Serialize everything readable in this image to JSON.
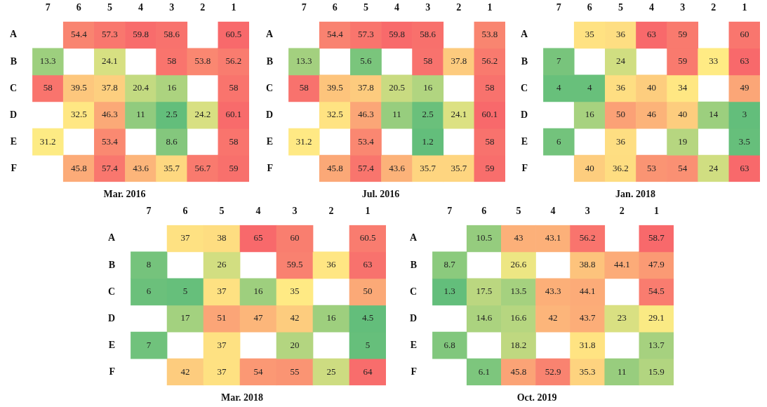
{
  "chart_data": [
    {
      "type": "heatmap",
      "title": "Mar. 2016",
      "categories": [
        "7",
        "6",
        "5",
        "4",
        "3",
        "2",
        "1"
      ],
      "y_categories": [
        "A",
        "B",
        "C",
        "D",
        "E",
        "F"
      ],
      "cells": [
        [
          null,
          54.4,
          57.3,
          59.8,
          58.6,
          null,
          60.5
        ],
        [
          13.3,
          null,
          24.1,
          null,
          58,
          53.8,
          56.2
        ],
        [
          58,
          39.5,
          37.8,
          20.4,
          16,
          null,
          58
        ],
        [
          null,
          32.5,
          46.3,
          11,
          2.5,
          24.2,
          60.1
        ],
        [
          31.2,
          null,
          53.4,
          null,
          8.6,
          null,
          58
        ],
        [
          null,
          45.8,
          57.4,
          43.6,
          35.7,
          56.7,
          59
        ]
      ],
      "data_labels": true
    },
    {
      "type": "heatmap",
      "title": "Jul. 2016",
      "categories": [
        "7",
        "6",
        "5",
        "4",
        "3",
        "2",
        "1"
      ],
      "y_categories": [
        "A",
        "B",
        "C",
        "D",
        "E",
        "F"
      ],
      "cells": [
        [
          null,
          54.4,
          57.3,
          59.8,
          58.6,
          null,
          53.8
        ],
        [
          13.3,
          null,
          5.6,
          null,
          58,
          37.8,
          56.2
        ],
        [
          58,
          39.5,
          37.8,
          20.5,
          16,
          null,
          58
        ],
        [
          null,
          32.5,
          46.3,
          11,
          2.5,
          24.1,
          60.1
        ],
        [
          31.2,
          null,
          53.4,
          null,
          1.2,
          null,
          58
        ],
        [
          null,
          45.8,
          57.4,
          43.6,
          35.7,
          35.7,
          59
        ]
      ],
      "data_labels": true
    },
    {
      "type": "heatmap",
      "title": "Jan. 2018",
      "categories": [
        "7",
        "6",
        "5",
        "4",
        "3",
        "2",
        "1"
      ],
      "y_categories": [
        "A",
        "B",
        "C",
        "D",
        "E",
        "F"
      ],
      "cells": [
        [
          null,
          35,
          36,
          63,
          59,
          null,
          60
        ],
        [
          7,
          null,
          24,
          null,
          59,
          33,
          63
        ],
        [
          4,
          4,
          36,
          40,
          34,
          null,
          49
        ],
        [
          null,
          16,
          50,
          46,
          40,
          14,
          3
        ],
        [
          6,
          null,
          36,
          null,
          19,
          null,
          3.5
        ],
        [
          null,
          40,
          36.2,
          53,
          54,
          24,
          63
        ]
      ],
      "data_labels": true
    },
    {
      "type": "heatmap",
      "title": "Mar. 2018",
      "categories": [
        "7",
        "6",
        "5",
        "4",
        "3",
        "2",
        "1"
      ],
      "y_categories": [
        "A",
        "B",
        "C",
        "D",
        "E",
        "F"
      ],
      "cells": [
        [
          null,
          37,
          38,
          65,
          60,
          null,
          60.5
        ],
        [
          8,
          null,
          26,
          null,
          59.5,
          36,
          63
        ],
        [
          6,
          5,
          37,
          16,
          35,
          null,
          50
        ],
        [
          null,
          17,
          51,
          47,
          42,
          16,
          4.5
        ],
        [
          7,
          null,
          37,
          null,
          20,
          null,
          5
        ],
        [
          null,
          42,
          37,
          54,
          55,
          25,
          64
        ]
      ],
      "data_labels": true
    },
    {
      "type": "heatmap",
      "title": "Oct. 2019",
      "categories": [
        "7",
        "6",
        "5",
        "4",
        "3",
        "2",
        "1"
      ],
      "y_categories": [
        "A",
        "B",
        "C",
        "D",
        "E",
        "F"
      ],
      "cells": [
        [
          null,
          10.5,
          43,
          43.1,
          56.2,
          null,
          58.7
        ],
        [
          8.7,
          null,
          26.6,
          null,
          38.8,
          44.1,
          47.9
        ],
        [
          1.3,
          17.5,
          13.5,
          43.3,
          44.1,
          null,
          54.5
        ],
        [
          null,
          14.6,
          16.6,
          42,
          43.7,
          23,
          29.1
        ],
        [
          6.8,
          null,
          18.2,
          null,
          31.8,
          null,
          13.7
        ],
        [
          null,
          6.1,
          45.8,
          52.9,
          35.3,
          11,
          15.9
        ]
      ],
      "data_labels": true
    }
  ]
}
